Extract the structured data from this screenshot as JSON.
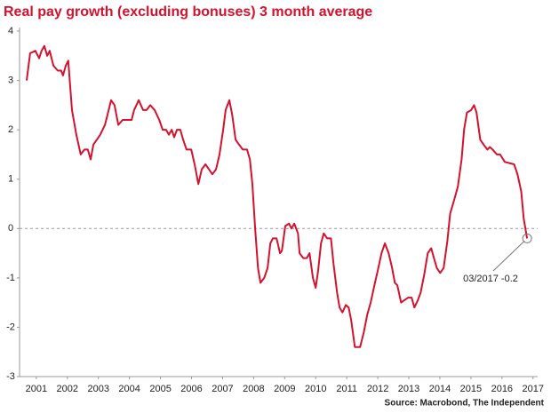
{
  "chart_data": {
    "type": "line",
    "title": "Real pay growth (excluding bonuses) 3 month average",
    "source": "Source: Macrobond, The Independent",
    "annotation": "03/2017 -0.2",
    "xlim": [
      2000.96,
      2017.65
    ],
    "ylim": [
      -3,
      4
    ],
    "yticks": [
      4,
      3,
      2,
      1,
      0,
      -1,
      -2,
      -3
    ],
    "xticks": [
      {
        "value": 2001.5,
        "label": "2001"
      },
      {
        "value": 2002.5,
        "label": "2002"
      },
      {
        "value": 2003.5,
        "label": "2003"
      },
      {
        "value": 2004.5,
        "label": "2004"
      },
      {
        "value": 2005.5,
        "label": "2005"
      },
      {
        "value": 2006.5,
        "label": "2006"
      },
      {
        "value": 2007.5,
        "label": "2007"
      },
      {
        "value": 2008.5,
        "label": "2008"
      },
      {
        "value": 2009.5,
        "label": "2009"
      },
      {
        "value": 2010.5,
        "label": "2010"
      },
      {
        "value": 2011.5,
        "label": "2011"
      },
      {
        "value": 2012.5,
        "label": "2012"
      },
      {
        "value": 2013.5,
        "label": "2013"
      },
      {
        "value": 2014.5,
        "label": "2014"
      },
      {
        "value": 2015.5,
        "label": "2015"
      },
      {
        "value": 2016.5,
        "label": "2016"
      },
      {
        "value": 2017.5,
        "label": "2017"
      }
    ],
    "reference_line": 0,
    "color": "#d4122e",
    "x": [
      2001.19,
      2001.3,
      2001.47,
      2001.59,
      2001.67,
      2001.76,
      2001.85,
      2001.93,
      2002.05,
      2002.19,
      2002.3,
      2002.36,
      2002.45,
      2002.53,
      2002.65,
      2002.79,
      2002.93,
      2003.05,
      2003.16,
      2003.25,
      2003.34,
      2003.56,
      2003.71,
      2003.79,
      2003.91,
      2004.02,
      2004.14,
      2004.28,
      2004.57,
      2004.65,
      2004.8,
      2004.94,
      2005.05,
      2005.17,
      2005.31,
      2005.46,
      2005.57,
      2005.68,
      2005.77,
      2005.86,
      2005.94,
      2006.03,
      2006.14,
      2006.23,
      2006.34,
      2006.49,
      2006.6,
      2006.72,
      2006.83,
      2006.95,
      2007.06,
      2007.17,
      2007.29,
      2007.4,
      2007.52,
      2007.6,
      2007.72,
      2007.81,
      2007.92,
      2008.03,
      2008.15,
      2008.29,
      2008.38,
      2008.46,
      2008.55,
      2008.64,
      2008.72,
      2008.84,
      2008.95,
      2009.04,
      2009.12,
      2009.24,
      2009.35,
      2009.41,
      2009.52,
      2009.64,
      2009.72,
      2009.81,
      2009.93,
      2009.98,
      2010.1,
      2010.21,
      2010.3,
      2010.41,
      2010.5,
      2010.58,
      2010.67,
      2010.76,
      2010.87,
      2010.99,
      2011.07,
      2011.19,
      2011.27,
      2011.36,
      2011.47,
      2011.56,
      2011.64,
      2011.76,
      2011.93,
      2012.05,
      2012.16,
      2012.27,
      2012.39,
      2012.5,
      2012.62,
      2012.73,
      2012.85,
      2012.96,
      2013.05,
      2013.13,
      2013.25,
      2013.36,
      2013.48,
      2013.59,
      2013.68,
      2013.79,
      2013.88,
      2013.99,
      2014.11,
      2014.22,
      2014.31,
      2014.4,
      2014.51,
      2014.62,
      2014.74,
      2014.83,
      2014.97,
      2015.08,
      2015.2,
      2015.28,
      2015.37,
      2015.51,
      2015.6,
      2015.68,
      2015.8,
      2015.91,
      2016.03,
      2016.11,
      2016.2,
      2016.34,
      2016.44,
      2016.59,
      2016.89,
      2017.0,
      2017.12,
      2017.2,
      2017.31
    ],
    "values": [
      3.0,
      3.55,
      3.6,
      3.45,
      3.6,
      3.7,
      3.5,
      3.6,
      3.3,
      3.2,
      3.2,
      3.1,
      3.3,
      3.4,
      2.4,
      1.9,
      1.5,
      1.6,
      1.6,
      1.4,
      1.7,
      1.9,
      2.1,
      2.3,
      2.6,
      2.5,
      2.1,
      2.2,
      2.2,
      2.4,
      2.6,
      2.4,
      2.4,
      2.5,
      2.4,
      2.2,
      2.0,
      2.0,
      1.9,
      2.0,
      1.85,
      2.0,
      2.0,
      1.8,
      1.6,
      1.6,
      1.3,
      0.9,
      1.2,
      1.3,
      1.2,
      1.1,
      1.2,
      1.5,
      2.0,
      2.4,
      2.6,
      2.3,
      1.8,
      1.7,
      1.6,
      1.6,
      1.4,
      0.9,
      0.0,
      -0.8,
      -1.1,
      -1.0,
      -0.8,
      -0.3,
      -0.2,
      -0.2,
      -0.5,
      -0.45,
      0.05,
      0.1,
      0.0,
      0.1,
      -0.1,
      -0.5,
      -0.6,
      -0.6,
      -0.5,
      -1.0,
      -1.2,
      -0.85,
      -0.3,
      -0.1,
      -0.2,
      -0.2,
      -0.7,
      -1.3,
      -1.6,
      -1.7,
      -1.55,
      -1.6,
      -1.85,
      -2.4,
      -2.4,
      -2.1,
      -1.75,
      -1.5,
      -1.15,
      -0.85,
      -0.5,
      -0.3,
      -0.5,
      -0.8,
      -1.1,
      -1.15,
      -1.5,
      -1.45,
      -1.4,
      -1.4,
      -1.6,
      -1.45,
      -1.3,
      -0.95,
      -0.5,
      -0.4,
      -0.6,
      -0.8,
      -0.9,
      -0.8,
      -0.25,
      0.3,
      0.6,
      0.85,
      1.4,
      2.0,
      2.35,
      2.4,
      2.5,
      2.35,
      1.8,
      1.7,
      1.6,
      1.65,
      1.6,
      1.5,
      1.5,
      1.35,
      1.3,
      1.1,
      0.75,
      0.2,
      -0.2
    ]
  }
}
